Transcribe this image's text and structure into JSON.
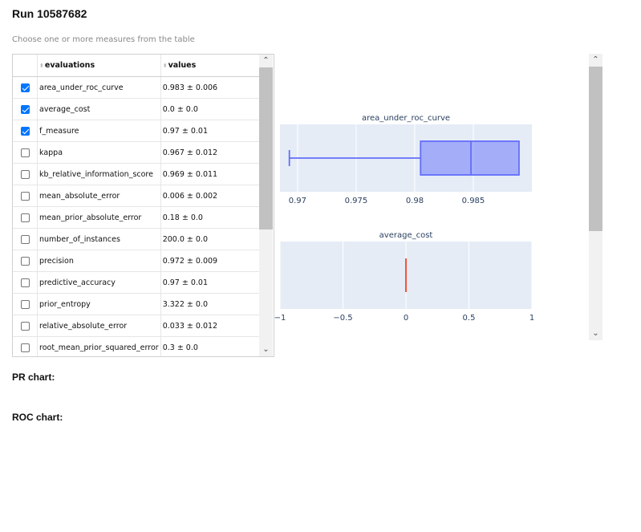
{
  "run_title": "Run 10587682",
  "hint": "Choose one or more measures from the table",
  "table": {
    "headers": {
      "evaluations": "evaluations",
      "values": "values"
    },
    "rows": [
      {
        "name": "area_under_roc_curve",
        "value": "0.983 ± 0.006",
        "checked": true
      },
      {
        "name": "average_cost",
        "value": "0.0 ± 0.0",
        "checked": true
      },
      {
        "name": "f_measure",
        "value": "0.97 ± 0.01",
        "checked": true
      },
      {
        "name": "kappa",
        "value": "0.967 ± 0.012",
        "checked": false
      },
      {
        "name": "kb_relative_information_score",
        "value": "0.969 ± 0.011",
        "checked": false
      },
      {
        "name": "mean_absolute_error",
        "value": "0.006 ± 0.002",
        "checked": false
      },
      {
        "name": "mean_prior_absolute_error",
        "value": "0.18 ± 0.0",
        "checked": false
      },
      {
        "name": "number_of_instances",
        "value": "200.0 ± 0.0",
        "checked": false
      },
      {
        "name": "precision",
        "value": "0.972 ± 0.009",
        "checked": false
      },
      {
        "name": "predictive_accuracy",
        "value": "0.97 ± 0.01",
        "checked": false
      },
      {
        "name": "prior_entropy",
        "value": "3.322 ± 0.0",
        "checked": false
      },
      {
        "name": "relative_absolute_error",
        "value": "0.033 ± 0.012",
        "checked": false
      },
      {
        "name": "root_mean_prior_squared_error",
        "value": "0.3 ± 0.0",
        "checked": false
      }
    ]
  },
  "pr_chart_label": "PR chart:",
  "roc_chart_label": "ROC chart:",
  "chart_data": [
    {
      "type": "box",
      "title": "area_under_roc_curve",
      "whisker_low": 0.9693,
      "q1": 0.9805,
      "median": 0.9848,
      "q3": 0.9889,
      "whisker_high": 0.9889,
      "xlim": [
        0.9685,
        0.99
      ],
      "xticks": [
        0.97,
        0.975,
        0.98,
        0.985
      ],
      "xtick_labels": [
        "0.97",
        "0.975",
        "0.98",
        "0.985"
      ],
      "color": "#636efa"
    },
    {
      "type": "box",
      "title": "average_cost",
      "whisker_low": 0,
      "q1": 0,
      "median": 0,
      "q3": 0,
      "whisker_high": 0,
      "xlim": [
        -1,
        1
      ],
      "xticks": [
        -1,
        -0.5,
        0,
        0.5,
        1
      ],
      "xtick_labels": [
        "−1",
        "−0.5",
        "0",
        "0.5",
        "1"
      ],
      "color": "#ef553b"
    }
  ]
}
